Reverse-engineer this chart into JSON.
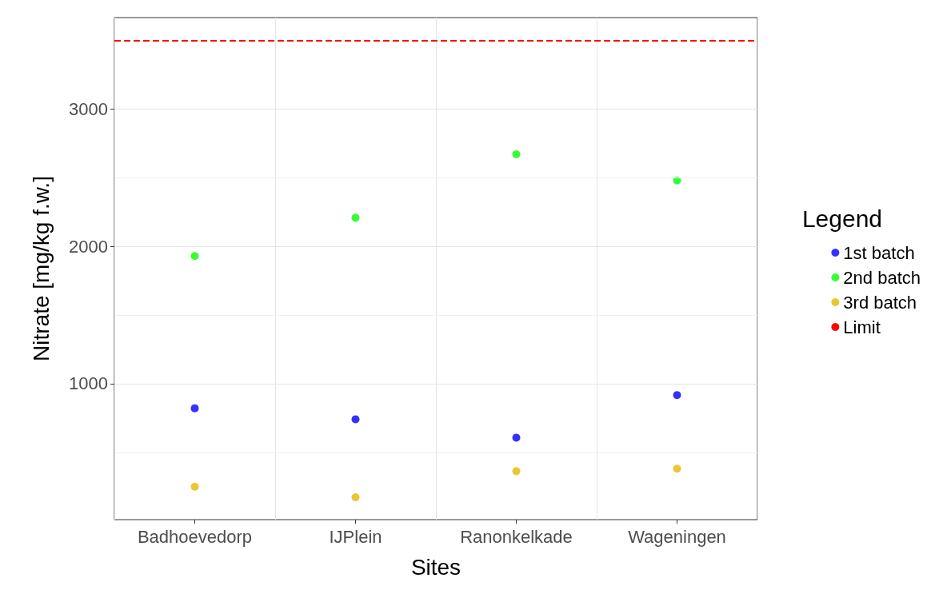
{
  "chart_data": {
    "type": "scatter",
    "xlabel": "Sites",
    "ylabel": "Nitrate [mg/kg f.w.]",
    "legend_title": "Legend",
    "categories": [
      "Badhoevedorp",
      "IJPlein",
      "Ranonkelkade",
      "Wageningen"
    ],
    "series": [
      {
        "name": "1st batch",
        "color": "#0000ff",
        "values": [
          821,
          741,
          607,
          917
        ]
      },
      {
        "name": "2nd batch",
        "color": "#00ff00",
        "values": [
          1929,
          2208,
          2670,
          2479
        ]
      },
      {
        "name": "3rd batch",
        "color": "#e6b800",
        "values": [
          250,
          173,
          363,
          381
        ]
      }
    ],
    "ref_lines": [
      {
        "axis": "y",
        "value": 3500,
        "label": "Limit",
        "color": "#ff0000",
        "line_style": "dashed"
      }
    ],
    "ylim": [
      10,
      3665
    ],
    "yticks": [
      {
        "value": 500,
        "label": null
      },
      1000,
      {
        "value": 1500,
        "label": null
      },
      2000,
      {
        "value": 2500,
        "label": null
      },
      3000
    ],
    "grid": true,
    "legend": "right",
    "marker": "circle"
  }
}
